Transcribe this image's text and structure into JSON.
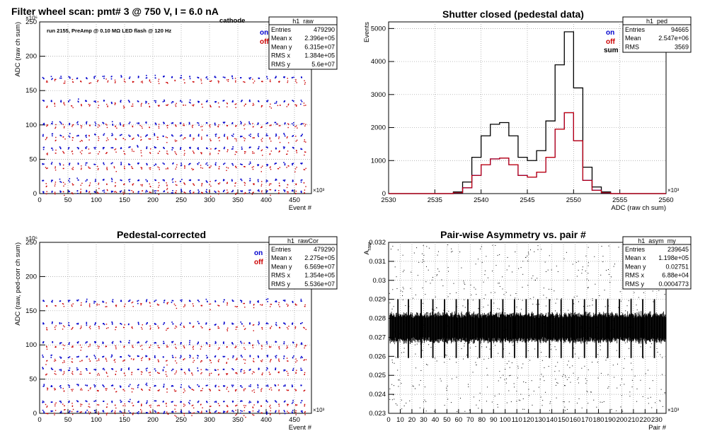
{
  "colors": {
    "on": "#0000cc",
    "off": "#cc0000",
    "sum": "#000000",
    "grid": "#999999"
  },
  "chart_data": [
    {
      "type": "scatter",
      "title": "Filter wheel scan: pmt#   3 @   750 V, I         = 6.0 nA",
      "title_subscript": "cathode",
      "annotation": "run 2155, PreAmp @ 0.10 MΩ LED flash @  120 Hz",
      "xlabel": "Event #",
      "ylabel": "ADC (raw ch sum)",
      "x_multiplier": "×10³",
      "y_multiplier": "×10⁶",
      "xlim": [
        0,
        480
      ],
      "ylim": [
        0,
        250
      ],
      "x_ticks": [
        "0",
        "50",
        "100",
        "150",
        "200",
        "250",
        "300",
        "350",
        "400",
        "450"
      ],
      "y_ticks": [
        "0",
        "50",
        "100",
        "150",
        "200",
        "250"
      ],
      "grid": true,
      "legend": {
        "position": "top-right",
        "entries": [
          "on",
          "off"
        ]
      },
      "stats": {
        "name": "h1_raw",
        "rows": [
          [
            "Entries",
            "479290"
          ],
          [
            "Mean x",
            "2.396e+05"
          ],
          [
            "Mean y",
            "6.315e+07"
          ],
          [
            "RMS x",
            "1.384e+05"
          ],
          [
            "RMS y",
            "5.6e+07"
          ]
        ]
      },
      "bands": [
        {
          "on": 170,
          "off": 164
        },
        {
          "on": 135,
          "off": 129
        },
        {
          "on": 103,
          "off": 99
        },
        {
          "on": 86,
          "off": 80
        },
        {
          "on": 67,
          "off": 61
        },
        {
          "on": 44,
          "off": 38
        },
        {
          "on": 20,
          "off": 14
        },
        {
          "on": 4,
          "off": 2
        }
      ]
    },
    {
      "type": "line",
      "title": "Shutter closed (pedestal data)",
      "xlabel": "ADC (raw ch sum)",
      "ylabel": "Events",
      "x_multiplier": "×10³",
      "xlim": [
        2530,
        2560
      ],
      "ylim": [
        0,
        5200
      ],
      "x_ticks": [
        "2530",
        "2535",
        "2540",
        "2545",
        "2550",
        "2555",
        "2560"
      ],
      "y_ticks": [
        "0",
        "1000",
        "2000",
        "3000",
        "4000",
        "5000"
      ],
      "grid": true,
      "legend": {
        "position": "top-right",
        "entries": [
          "on",
          "off",
          "sum"
        ]
      },
      "stats": {
        "name": "h1_ped",
        "rows": [
          [
            "Entries",
            "94665"
          ],
          [
            "Mean",
            "2.547e+06"
          ],
          [
            "RMS",
            "3569"
          ]
        ]
      },
      "x": [
        2537.5,
        2538.5,
        2539.5,
        2540.5,
        2541.5,
        2542.5,
        2543.5,
        2544.5,
        2545.5,
        2546.5,
        2547.5,
        2548.5,
        2549.5,
        2550.5,
        2551.5,
        2552.5,
        2553.5
      ],
      "series": [
        {
          "name": "sum",
          "values": [
            50,
            350,
            1100,
            1750,
            2100,
            2150,
            1750,
            1100,
            1000,
            1300,
            2200,
            3900,
            4900,
            3200,
            800,
            200,
            50
          ]
        },
        {
          "name": "on",
          "values": [
            25,
            175,
            550,
            875,
            1050,
            1075,
            875,
            550,
            500,
            650,
            1100,
            1950,
            2450,
            1600,
            400,
            100,
            25
          ]
        },
        {
          "name": "off",
          "values": [
            25,
            175,
            550,
            875,
            1050,
            1075,
            875,
            550,
            500,
            650,
            1100,
            1950,
            2450,
            1600,
            400,
            100,
            25
          ]
        }
      ]
    },
    {
      "type": "scatter",
      "title": "Pedestal-corrected",
      "xlabel": "Event #",
      "ylabel": "ADC (raw, ped-corr ch sum)",
      "x_multiplier": "×10³",
      "y_multiplier": "×10⁶",
      "xlim": [
        0,
        480
      ],
      "ylim": [
        0,
        250
      ],
      "x_ticks": [
        "0",
        "50",
        "100",
        "150",
        "200",
        "250",
        "300",
        "350",
        "400",
        "450"
      ],
      "y_ticks": [
        "0",
        "50",
        "100",
        "150",
        "200",
        "250"
      ],
      "grid": true,
      "legend": {
        "position": "top-right",
        "entries": [
          "on",
          "off"
        ]
      },
      "stats": {
        "name": "h1_rawCor",
        "rows": [
          [
            "Entries",
            "479290"
          ],
          [
            "Mean x",
            "2.275e+05"
          ],
          [
            "Mean y",
            "6.569e+07"
          ],
          [
            "RMS x",
            "1.354e+05"
          ],
          [
            "RMS y",
            "5.536e+07"
          ]
        ]
      },
      "bands": [
        {
          "on": 165,
          "off": 159
        },
        {
          "on": 132,
          "off": 126
        },
        {
          "on": 104,
          "off": 98
        },
        {
          "on": 84,
          "off": 78
        },
        {
          "on": 65,
          "off": 59
        },
        {
          "on": 41,
          "off": 35
        },
        {
          "on": 18,
          "off": 12
        },
        {
          "on": 3,
          "off": 1
        }
      ]
    },
    {
      "type": "scatter",
      "title": "Pair-wise Asymmetry vs. pair #",
      "xlabel": "Pair #",
      "ylabel": "A",
      "ylabel_subscript": "raw",
      "x_multiplier": "×10³",
      "xlim": [
        0,
        238
      ],
      "ylim": [
        0.023,
        0.032
      ],
      "x_ticks": [
        "0",
        "10",
        "20",
        "30",
        "40",
        "50",
        "60",
        "70",
        "80",
        "90",
        "100",
        "110",
        "120",
        "130",
        "140",
        "150",
        "160",
        "170",
        "180",
        "190",
        "200",
        "210",
        "220",
        "230"
      ],
      "y_ticks": [
        "0.023",
        "0.024",
        "0.025",
        "0.026",
        "0.027",
        "0.028",
        "0.029",
        "0.03",
        "0.031",
        "0.032"
      ],
      "grid": true,
      "stats": {
        "name": "h1_asym_my",
        "rows": [
          [
            "Entries",
            "239645"
          ],
          [
            "Mean x",
            "1.198e+05"
          ],
          [
            "Mean y",
            "0.02751"
          ],
          [
            "RMS x",
            "6.88e+04"
          ],
          [
            "RMS y",
            "0.0004773"
          ]
        ]
      },
      "band_mean": 0.02751,
      "band_rms": 0.0004773,
      "spike_x": [
        8,
        17,
        28,
        38,
        48,
        58,
        68,
        78,
        88,
        98,
        108,
        118,
        128,
        138,
        148,
        158,
        168,
        178,
        188,
        198,
        208,
        218,
        228
      ]
    }
  ]
}
